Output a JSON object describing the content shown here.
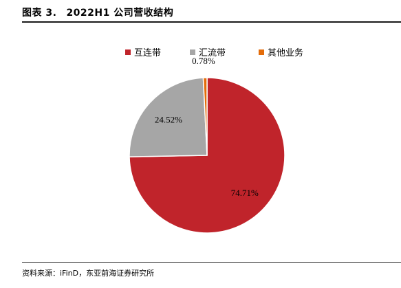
{
  "header": {
    "figure_label": "图表 3.",
    "title": "2022H1 公司营收结构"
  },
  "source": "资料来源：iFinD，东亚前海证券研究所",
  "colors": {
    "互连带": "#c0242b",
    "汇流带": "#a6a6a6",
    "其他业务": "#e36c0a"
  },
  "chart_data": {
    "type": "pie",
    "title": "",
    "legend_position": "top",
    "slices": [
      {
        "name": "互连带",
        "value": 74.71,
        "label": "74.71%"
      },
      {
        "name": "汇流带",
        "value": 24.52,
        "label": "24.52%"
      },
      {
        "name": "其他业务",
        "value": 0.78,
        "label": "0.78%"
      }
    ]
  }
}
